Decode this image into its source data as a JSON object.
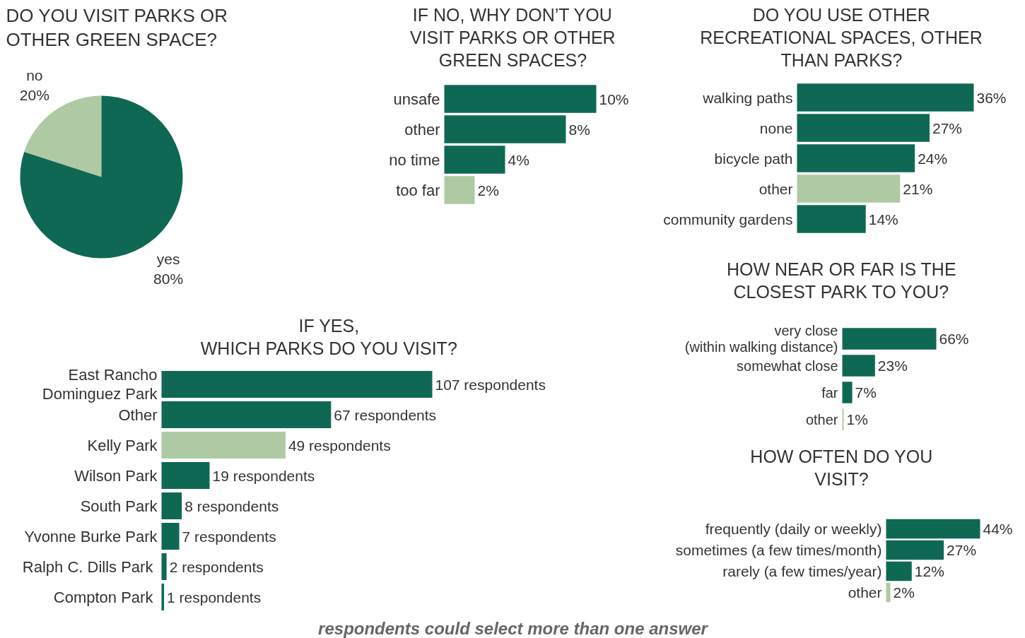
{
  "chart_data": [
    {
      "type": "pie",
      "title": "DO YOU VISIT PARKS OR\nOTHER GREEN SPACE?",
      "categories": [
        "no",
        "yes"
      ],
      "values": [
        20,
        80
      ],
      "colors": [
        "#b0c9a5",
        "#0f6854"
      ],
      "value_labels": [
        "20%",
        "80%"
      ]
    },
    {
      "type": "bar",
      "orientation": "horizontal",
      "title": "IF NO, WHY DON’T YOU\nVISIT PARKS OR OTHER\nGREEN SPACES?",
      "categories": [
        "unsafe",
        "other",
        "no time",
        "too far"
      ],
      "values": [
        10,
        8,
        4,
        2
      ],
      "colors": [
        "#0f6854",
        "#0f6854",
        "#0f6854",
        "#b0c9a5"
      ],
      "value_labels": [
        "10%",
        "8%",
        "4%",
        "2%"
      ]
    },
    {
      "type": "bar",
      "orientation": "horizontal",
      "title": "DO YOU USE OTHER\nRECREATIONAL SPACES, OTHER\nTHAN PARKS?",
      "categories": [
        "walking paths",
        "none",
        "bicycle path",
        "other",
        "community gardens"
      ],
      "values": [
        36,
        27,
        24,
        21,
        14
      ],
      "colors": [
        "#0f6854",
        "#0f6854",
        "#0f6854",
        "#b0c9a5",
        "#0f6854"
      ],
      "value_labels": [
        "36%",
        "27%",
        "24%",
        "21%",
        "14%"
      ]
    },
    {
      "type": "bar",
      "orientation": "horizontal",
      "title": "IF YES,\nWHICH PARKS DO YOU VISIT?",
      "categories": [
        "East Rancho\nDominguez Park",
        "Other",
        "Kelly Park",
        "Wilson Park",
        "South Park",
        "Yvonne Burke Park",
        "Ralph C. Dills  Park",
        "Compton  Park"
      ],
      "values": [
        107,
        67,
        49,
        19,
        8,
        7,
        2,
        1
      ],
      "colors": [
        "#0f6854",
        "#0f6854",
        "#b0c9a5",
        "#0f6854",
        "#0f6854",
        "#0f6854",
        "#0f6854",
        "#0f6854"
      ],
      "value_labels": [
        "107 respondents",
        "67 respondents",
        "49 respondents",
        "19 respondents",
        "8 respondents",
        "7 respondents",
        "2 respondents",
        "1 respondents"
      ]
    },
    {
      "type": "bar",
      "orientation": "horizontal",
      "title": "HOW NEAR OR FAR IS THE\nCLOSEST PARK TO YOU?",
      "categories": [
        "very close\n(within walking distance)",
        "somewhat close",
        "far",
        "other"
      ],
      "values": [
        66,
        23,
        7,
        1
      ],
      "colors": [
        "#0f6854",
        "#0f6854",
        "#0f6854",
        "#b0c9a5"
      ],
      "value_labels": [
        "66%",
        "23%",
        "7%",
        "1%"
      ]
    },
    {
      "type": "bar",
      "orientation": "horizontal",
      "title": "HOW OFTEN DO YOU\nVISIT?",
      "categories": [
        "frequently (daily or weekly)",
        "sometimes (a few times/month)",
        "rarely (a few times/year)",
        "other"
      ],
      "values": [
        44,
        27,
        12,
        2
      ],
      "colors": [
        "#0f6854",
        "#0f6854",
        "#0f6854",
        "#b0c9a5"
      ],
      "value_labels": [
        "44%",
        "27%",
        "12%",
        "2%"
      ]
    },
    {
      "type": "other",
      "annotations": [
        "respondents could select more than one answer"
      ]
    }
  ]
}
